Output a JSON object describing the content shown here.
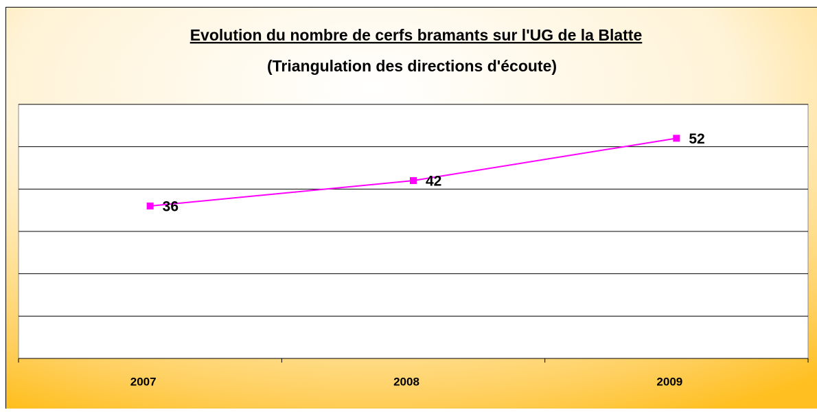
{
  "chart_data": {
    "type": "line",
    "title": "Evolution du nombre de cerfs bramants sur l'UG de la Blatte",
    "subtitle": "(Triangulation des directions d'écoute)",
    "categories": [
      "2007",
      "2008",
      "2009"
    ],
    "series": [
      {
        "color": "#ff00ff",
        "values": [
          36,
          42,
          52
        ]
      }
    ],
    "ylim": [
      0,
      60
    ],
    "yticks": [
      0,
      10,
      20,
      30,
      40,
      50,
      60
    ],
    "grid": true
  }
}
